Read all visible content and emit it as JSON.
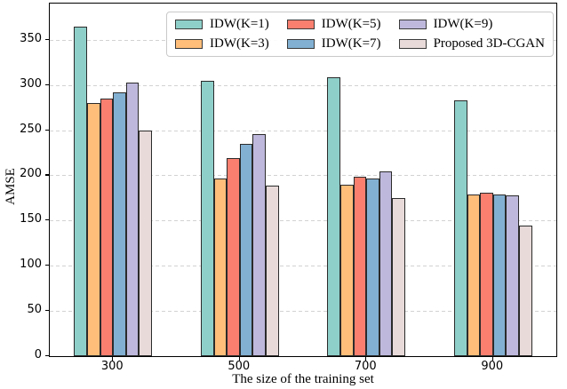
{
  "chart_data": {
    "type": "bar",
    "title": "",
    "xlabel": "The size of the training set",
    "ylabel": "AMSE",
    "categories": [
      "300",
      "500",
      "700",
      "900"
    ],
    "series": [
      {
        "name": "IDW(K=1)",
        "color": "#8ECFC9",
        "values": [
          364,
          305,
          308,
          283
        ]
      },
      {
        "name": "IDW(K=3)",
        "color": "#FFBE7A",
        "values": [
          280,
          196,
          190,
          179
        ]
      },
      {
        "name": "IDW(K=5)",
        "color": "#FA7F6F",
        "values": [
          285,
          219,
          198,
          181
        ]
      },
      {
        "name": "IDW(K=7)",
        "color": "#82B0D2",
        "values": [
          292,
          235,
          196,
          179
        ]
      },
      {
        "name": "IDW(K=9)",
        "color": "#BEB8DC",
        "values": [
          303,
          246,
          204,
          178
        ]
      },
      {
        "name": "Proposed 3D-CGAN",
        "color": "#E7DAD9",
        "values": [
          250,
          189,
          175,
          144
        ]
      }
    ],
    "ylim": [
      0,
      390
    ],
    "yticks": [
      0,
      50,
      100,
      150,
      200,
      250,
      300,
      350
    ],
    "grid": "horizontal-dashed",
    "gridline_color": "#d2d2d2",
    "bar_edge_color": "#2b2b2b",
    "legend_position": "upper-center-inside",
    "legend_columns": 3,
    "legend_rows": 2
  }
}
